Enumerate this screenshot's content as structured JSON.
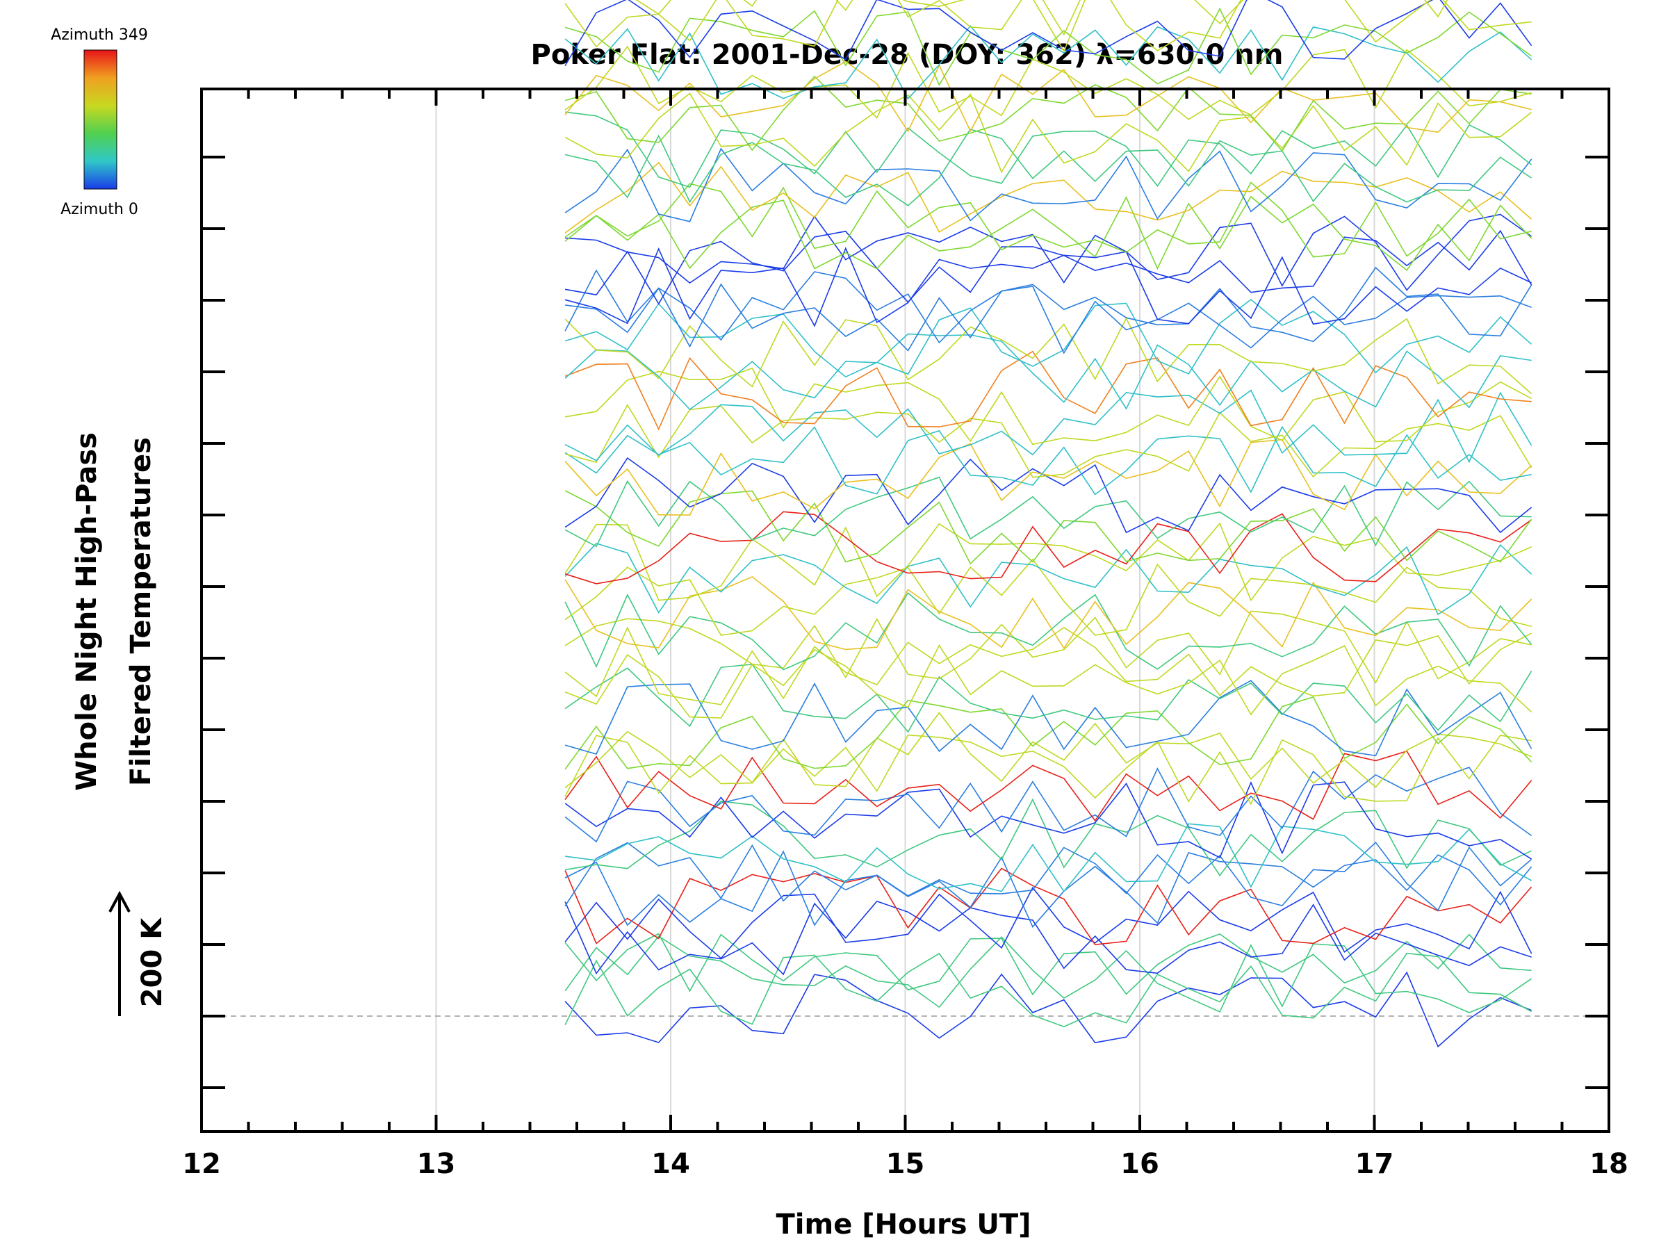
{
  "chart_data": {
    "type": "line",
    "title": "Poker Flat: 2001-Dec-28 (DOY: 362) λ=630.0 nm",
    "xlabel": "Time [Hours UT]",
    "ylabel_line1": "Whole Night High-Pass",
    "ylabel_line2": "Filtered Temperatures",
    "scale_annotation": "200 K",
    "xlim": [
      12,
      18
    ],
    "x_ticks": [
      "12",
      "13",
      "14",
      "15",
      "16",
      "17",
      "18"
    ],
    "grid_x": [
      13,
      14,
      15,
      16,
      17
    ],
    "colorbar": {
      "top_label": "Azimuth 349",
      "bottom_label": "Azimuth 0",
      "colors": [
        "#e8141a",
        "#f0a020",
        "#c8d820",
        "#50d050",
        "#30c8c8",
        "#1a3ce8"
      ]
    },
    "ylim_offsets": [
      -1.5,
      14.2
    ],
    "series_count": 60,
    "time_range": [
      13.55,
      17.67
    ],
    "samples_per_series": 32,
    "amplitude_units": 0.55,
    "palette": [
      "#1a3ce8",
      "#2a7ee0",
      "#30c0c8",
      "#40c880",
      "#7ed830",
      "#c0d820",
      "#e8c020",
      "#f08020",
      "#e82018"
    ]
  }
}
